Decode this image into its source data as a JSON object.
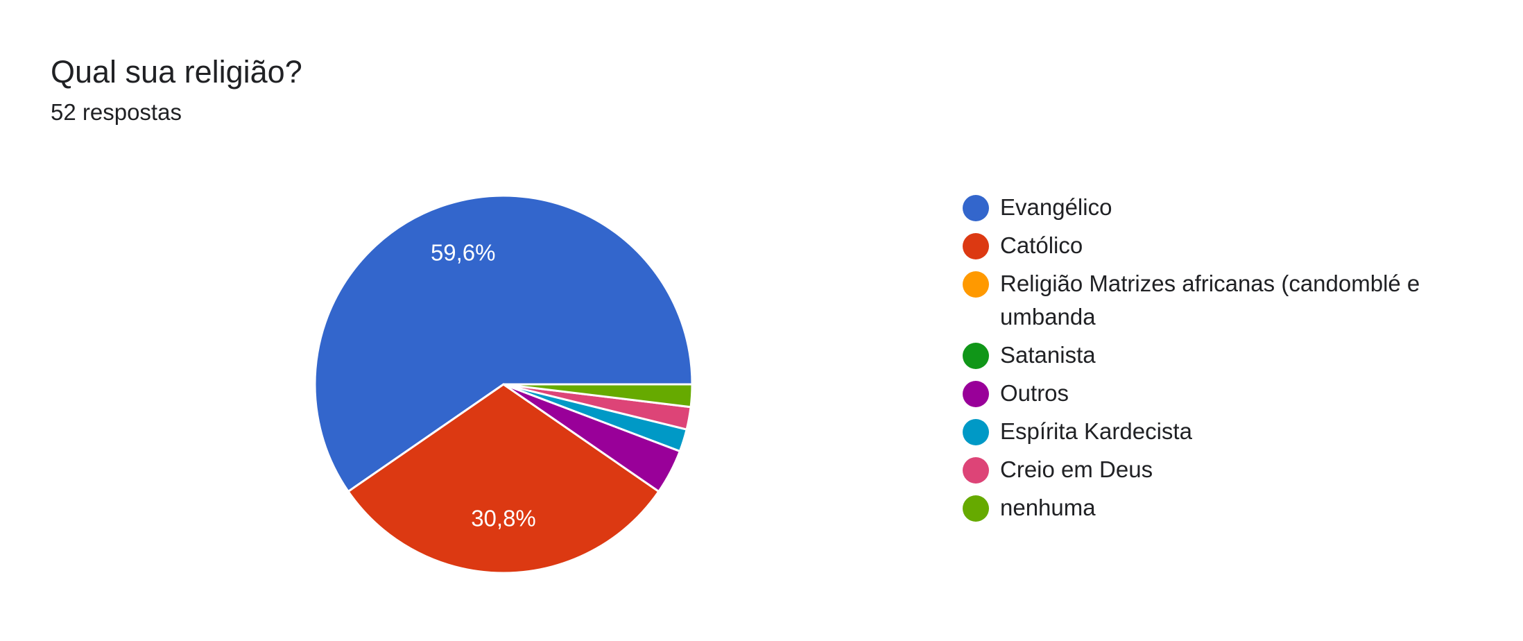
{
  "header": {
    "title": "Qual sua religião?",
    "responses": "52 respostas"
  },
  "chart_data": {
    "type": "pie",
    "total_responses": 52,
    "slices": [
      {
        "label": "Evangélico",
        "count": 31,
        "percent": 59.6,
        "display": "59,6%",
        "color": "#3366cc"
      },
      {
        "label": "Católico",
        "count": 16,
        "percent": 30.8,
        "display": "30,8%",
        "color": "#dc3912"
      },
      {
        "label": "Religião Matrizes africanas (candomblé e umbanda",
        "count": 0,
        "percent": 0,
        "display": "",
        "color": "#ff9900"
      },
      {
        "label": "Satanista",
        "count": 0,
        "percent": 0,
        "display": "",
        "color": "#109618"
      },
      {
        "label": "Outros",
        "count": 2,
        "percent": 3.8,
        "display": "",
        "color": "#990099"
      },
      {
        "label": "Espírita Kardecista",
        "count": 1,
        "percent": 1.9,
        "display": "",
        "color": "#0099c6"
      },
      {
        "label": "Creio em Deus",
        "count": 1,
        "percent": 1.9,
        "display": "",
        "color": "#dd4477"
      },
      {
        "label": "nenhuma",
        "count": 1,
        "percent": 1.9,
        "display": "",
        "color": "#66aa00"
      }
    ],
    "legend_position": "right"
  }
}
